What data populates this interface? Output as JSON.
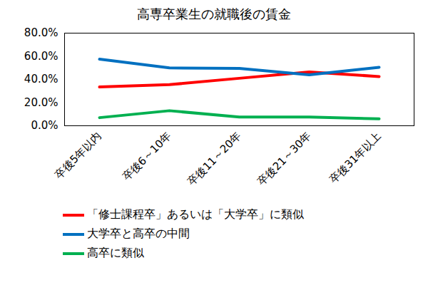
{
  "chart_data": {
    "type": "line",
    "title": "高専卒業生の就職後の賃金",
    "categories": [
      "卒後5年以内",
      "卒後6～10年",
      "卒後11～20年",
      "卒後21～30年",
      "卒後31年以上"
    ],
    "series": [
      {
        "name": "「修士課程卒」あるいは「大学卒」に類似",
        "color": "#ff0000",
        "values": [
          33.5,
          35.5,
          41,
          46.5,
          42.5
        ]
      },
      {
        "name": "大学卒と高卒の中間",
        "color": "#0070c0",
        "values": [
          57.5,
          50,
          49.5,
          44,
          50.5
        ]
      },
      {
        "name": "高卒に類似",
        "color": "#00b050",
        "values": [
          7,
          13,
          7.5,
          7.5,
          6
        ]
      }
    ],
    "ylim": [
      0,
      80
    ],
    "yticks": [
      {
        "value": 0,
        "label": "0.0%"
      },
      {
        "value": 20,
        "label": "20.0%"
      },
      {
        "value": 40,
        "label": "40.0%"
      },
      {
        "value": 60,
        "label": "60.0%"
      },
      {
        "value": 80,
        "label": "80.0%"
      }
    ],
    "grid": false,
    "legend": "bottom"
  }
}
